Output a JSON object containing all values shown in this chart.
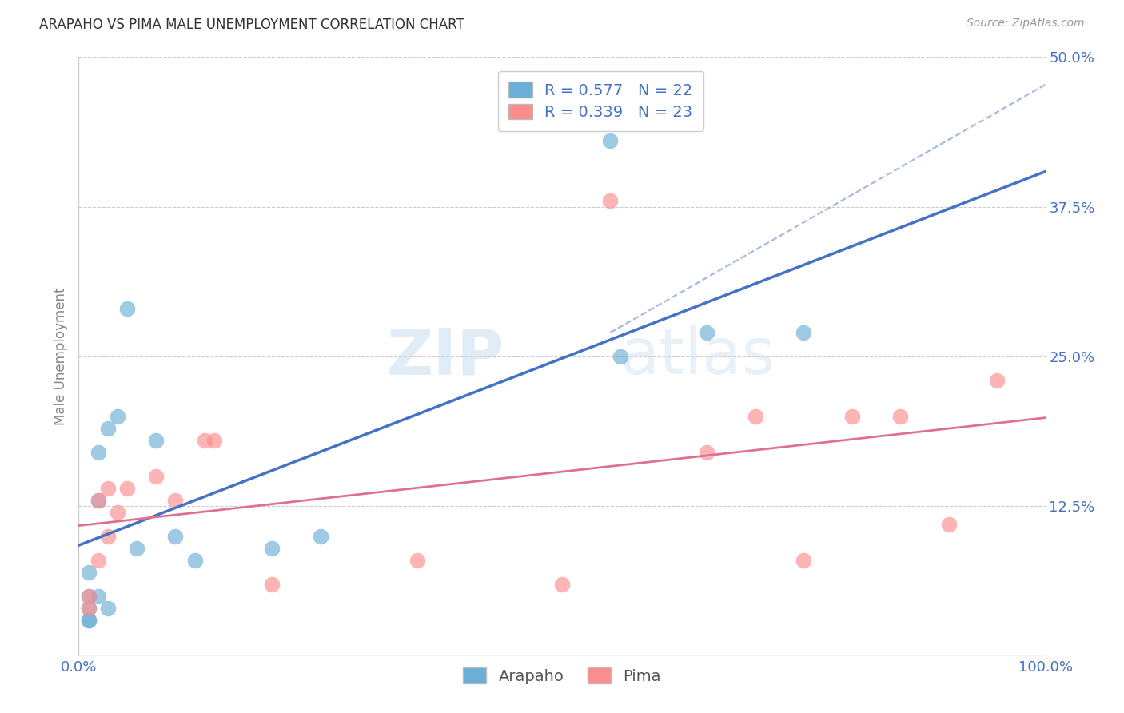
{
  "title": "ARAPAHO VS PIMA MALE UNEMPLOYMENT CORRELATION CHART",
  "source": "Source: ZipAtlas.com",
  "xlabel": "",
  "ylabel": "Male Unemployment",
  "xlim": [
    0.0,
    1.0
  ],
  "ylim": [
    0.0,
    0.5
  ],
  "yticks": [
    0.0,
    0.125,
    0.25,
    0.375,
    0.5
  ],
  "ytick_labels": [
    "",
    "12.5%",
    "25.0%",
    "37.5%",
    "50.0%"
  ],
  "xticks": [
    0.0,
    0.1,
    0.2,
    0.3,
    0.4,
    0.5,
    0.6,
    0.7,
    0.8,
    0.9,
    1.0
  ],
  "xtick_labels": [
    "0.0%",
    "",
    "",
    "",
    "",
    "",
    "",
    "",
    "",
    "",
    "100.0%"
  ],
  "arapaho_color": "#6baed6",
  "pima_color": "#fc8d8d",
  "arapaho_R": 0.577,
  "arapaho_N": 22,
  "pima_R": 0.339,
  "pima_N": 23,
  "arapaho_x": [
    0.01,
    0.01,
    0.01,
    0.01,
    0.01,
    0.02,
    0.02,
    0.02,
    0.03,
    0.03,
    0.04,
    0.05,
    0.06,
    0.08,
    0.1,
    0.12,
    0.2,
    0.55,
    0.56,
    0.65,
    0.75,
    0.25
  ],
  "arapaho_y": [
    0.04,
    0.05,
    0.07,
    0.03,
    0.03,
    0.05,
    0.13,
    0.17,
    0.04,
    0.19,
    0.2,
    0.29,
    0.09,
    0.18,
    0.1,
    0.08,
    0.09,
    0.43,
    0.25,
    0.27,
    0.27,
    0.1
  ],
  "pima_x": [
    0.01,
    0.01,
    0.02,
    0.02,
    0.03,
    0.03,
    0.04,
    0.05,
    0.08,
    0.1,
    0.13,
    0.14,
    0.2,
    0.35,
    0.5,
    0.55,
    0.65,
    0.7,
    0.75,
    0.8,
    0.85,
    0.9,
    0.95
  ],
  "pima_y": [
    0.05,
    0.04,
    0.08,
    0.13,
    0.1,
    0.14,
    0.12,
    0.14,
    0.15,
    0.13,
    0.18,
    0.18,
    0.06,
    0.08,
    0.06,
    0.38,
    0.17,
    0.2,
    0.08,
    0.2,
    0.2,
    0.11,
    0.23
  ],
  "watermark_zip": "ZIP",
  "watermark_atlas": "atlas",
  "background_color": "#ffffff",
  "grid_color": "#cccccc",
  "title_color": "#333333",
  "axis_label_color": "#888888",
  "tick_label_color_x": "#4472c4",
  "tick_label_color_y": "#4472c4",
  "legend_color": "#4472c4",
  "arapaho_line_color": "#4472c4",
  "pima_line_color": "#e07090",
  "dash_line_color": "#a0b8e0"
}
